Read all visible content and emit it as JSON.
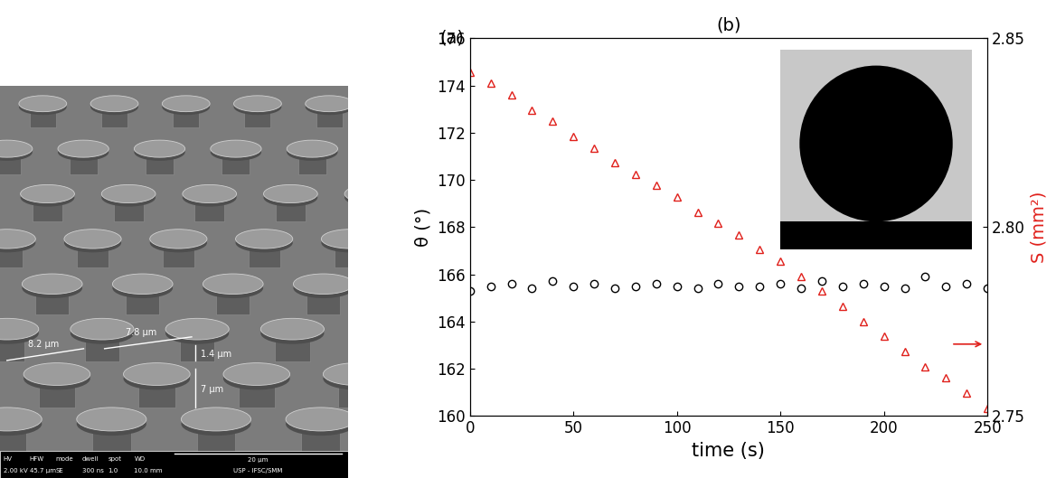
{
  "image": {
    "panel_label": "(a)",
    "dimensions": [
      "8.2 µm",
      "7.8 µm",
      "1.4 µm",
      "7 µm"
    ],
    "info_bar": {
      "headers": [
        "HV",
        "HFW",
        "mode",
        "dwell",
        "spot",
        "WD"
      ],
      "values": [
        "2.00 kV",
        "45.7 µm",
        "SE",
        "300 ns",
        "1.0",
        "10.0 mm"
      ],
      "scale_bar": "20 µm",
      "institution": "USP - IFSC/SMM"
    }
  },
  "chart_data": {
    "type": "scatter",
    "title": "(b)",
    "xlabel": "time (s)",
    "ylabel": "θ (°)",
    "y2label": "S (mm²)",
    "x": [
      0,
      10,
      20,
      30,
      40,
      50,
      60,
      70,
      80,
      90,
      100,
      110,
      120,
      130,
      140,
      150,
      160,
      170,
      180,
      190,
      200,
      210,
      220,
      230,
      240,
      250
    ],
    "series": [
      {
        "color": "#000000",
        "marker": "circle",
        "line_style": "none",
        "values": [
          165.3,
          165.5,
          165.6,
          165.4,
          165.7,
          165.5,
          165.6,
          165.4,
          165.5,
          165.6,
          165.5,
          165.4,
          165.6,
          165.5,
          165.5,
          165.6,
          165.4,
          165.7,
          165.5,
          165.6,
          165.5,
          165.4,
          165.9,
          165.5,
          165.6,
          165.4
        ]
      },
      {
        "color": "#e0201b",
        "marker": "triangle",
        "line_style": "none",
        "axis": "y2",
        "values": [
          2.841,
          2.838,
          2.835,
          2.831,
          2.828,
          2.824,
          2.821,
          2.817,
          2.814,
          2.811,
          2.808,
          2.804,
          2.801,
          2.798,
          2.794,
          2.791,
          2.787,
          2.783,
          2.779,
          2.775,
          2.771,
          2.767,
          2.763,
          2.76,
          2.756,
          2.752
        ]
      }
    ],
    "xlim": [
      0,
      250
    ],
    "xticks": [
      0,
      50,
      100,
      150,
      200,
      250
    ],
    "ylim": [
      160,
      176
    ],
    "yticks": [
      160,
      162,
      164,
      166,
      168,
      170,
      172,
      174,
      176
    ],
    "y2lim": [
      2.75,
      2.85
    ],
    "y2ticks": [
      2.75,
      {
        "value": 2.8,
        "label": "2.80"
      },
      2.85
    ],
    "grid": false
  }
}
